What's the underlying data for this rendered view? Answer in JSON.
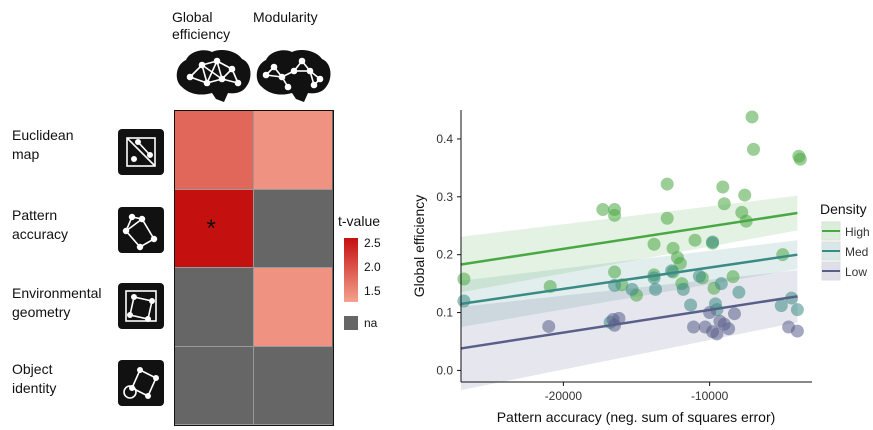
{
  "heatmap": {
    "columns": [
      "Global\nefficiency",
      "Modularity"
    ],
    "rows": [
      {
        "label": "Euclidean\nmap",
        "icon": "network-square-icon"
      },
      {
        "label": "Pattern\naccuracy",
        "icon": "network-diamond-icon"
      },
      {
        "label": "Environmental\ngeometry",
        "icon": "network-square-rotated-icon"
      },
      {
        "label": "Object\nidentity",
        "icon": "network-objects-icon"
      }
    ],
    "values": [
      [
        1.8,
        1.4
      ],
      [
        2.6,
        null
      ],
      [
        null,
        1.4
      ],
      [
        null,
        null
      ]
    ],
    "significance": [
      [
        "",
        ""
      ],
      [
        "*",
        ""
      ],
      [
        "",
        ""
      ],
      [
        "",
        ""
      ]
    ],
    "legend": {
      "title": "t-value",
      "ticks": [
        "2.5",
        "2.0",
        "1.5"
      ],
      "na_label": "na",
      "range": [
        1.25,
        2.6
      ],
      "color_low": "#f4a28f",
      "color_high": "#c51010",
      "na_color": "#666666"
    }
  },
  "chart_data": {
    "type": "scatter",
    "xlabel": "Pattern accuracy (neg. sum of squares error)",
    "ylabel": "Global efficiency",
    "xlim": [
      -27000,
      -3000
    ],
    "ylim": [
      -0.02,
      0.45
    ],
    "xticks": [
      -20000,
      -10000
    ],
    "xtick_labels": [
      "-20000",
      "-10000"
    ],
    "yticks": [
      0.0,
      0.1,
      0.2,
      0.3,
      0.4
    ],
    "ytick_labels": [
      "0.0",
      "0.1",
      "0.2",
      "0.3",
      "0.4"
    ],
    "legend_title": "Density",
    "legend_position": "right",
    "series": [
      {
        "name": "High",
        "color": "#4aa844",
        "fit": [
          [
            -27000,
            0.183
          ],
          [
            -4000,
            0.272
          ]
        ],
        "ci": 0.03,
        "points": [
          [
            -26800,
            0.158
          ],
          [
            -20900,
            0.145
          ],
          [
            -17300,
            0.278
          ],
          [
            -16500,
            0.278
          ],
          [
            -16500,
            0.268
          ],
          [
            -16500,
            0.17
          ],
          [
            -16000,
            0.148
          ],
          [
            -15000,
            0.13
          ],
          [
            -13800,
            0.218
          ],
          [
            -13800,
            0.165
          ],
          [
            -12900,
            0.322
          ],
          [
            -12900,
            0.263
          ],
          [
            -12500,
            0.211
          ],
          [
            -12500,
            0.17
          ],
          [
            -12200,
            0.195
          ],
          [
            -12000,
            0.185
          ],
          [
            -11900,
            0.15
          ],
          [
            -11000,
            0.225
          ],
          [
            -10500,
            0.16
          ],
          [
            -9800,
            0.22
          ],
          [
            -9100,
            0.317
          ],
          [
            -9000,
            0.288
          ],
          [
            -8400,
            0.162
          ],
          [
            -7800,
            0.273
          ],
          [
            -7600,
            0.303
          ],
          [
            -7500,
            0.258
          ],
          [
            -7100,
            0.438
          ],
          [
            -7000,
            0.382
          ],
          [
            -5000,
            0.2
          ],
          [
            -3900,
            0.37
          ],
          [
            -3800,
            0.365
          ],
          [
            -9700,
            0.142
          ]
        ]
      },
      {
        "name": "Med",
        "color": "#3a8a85",
        "fit": [
          [
            -27000,
            0.115
          ],
          [
            -4000,
            0.2
          ]
        ],
        "ci": 0.025,
        "points": [
          [
            -26800,
            0.12
          ],
          [
            -16500,
            0.147
          ],
          [
            -15300,
            0.14
          ],
          [
            -13800,
            0.16
          ],
          [
            -13700,
            0.14
          ],
          [
            -12600,
            0.172
          ],
          [
            -11800,
            0.14
          ],
          [
            -11300,
            0.113
          ],
          [
            -10700,
            0.163
          ],
          [
            -9800,
            0.222
          ],
          [
            -9600,
            0.115
          ],
          [
            -9500,
            0.105
          ],
          [
            -9200,
            0.15
          ],
          [
            -8000,
            0.135
          ],
          [
            -5100,
            0.112
          ],
          [
            -4400,
            0.125
          ],
          [
            -4000,
            0.105
          ],
          [
            -16800,
            0.083
          ]
        ]
      },
      {
        "name": "Low",
        "color": "#5a5f8a",
        "fit": [
          [
            -27000,
            0.038
          ],
          [
            -4000,
            0.128
          ]
        ],
        "ci": 0.045,
        "points": [
          [
            -21000,
            0.076
          ],
          [
            -16600,
            0.088
          ],
          [
            -16200,
            0.09
          ],
          [
            -16500,
            0.078
          ],
          [
            -10000,
            0.1
          ],
          [
            -9300,
            0.085
          ],
          [
            -8300,
            0.098
          ],
          [
            -11100,
            0.075
          ],
          [
            -10300,
            0.075
          ],
          [
            -9800,
            0.067
          ],
          [
            -9500,
            0.063
          ],
          [
            -9000,
            0.08
          ],
          [
            -8700,
            0.072
          ],
          [
            -4600,
            0.075
          ],
          [
            -4000,
            0.068
          ]
        ]
      }
    ]
  }
}
